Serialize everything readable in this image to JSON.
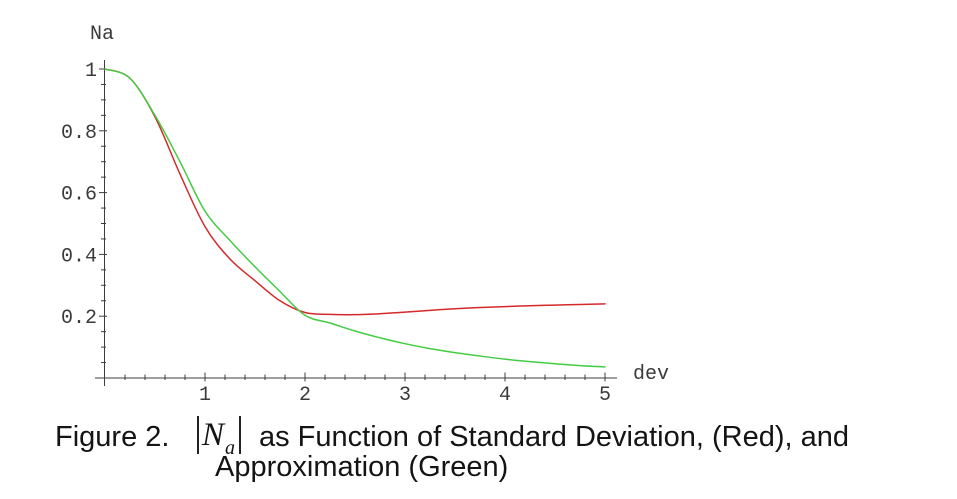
{
  "figure": {
    "caption_prefix": "Figure 2.",
    "math_open_bar": "|",
    "math_symbol": "N",
    "math_subscript": "a",
    "caption_line1_rest": "as Function of Standard Deviation, (Red), and",
    "caption_line2": "Approximation (Green)"
  },
  "chart_data": {
    "type": "line",
    "title": "",
    "xlabel": "dev",
    "ylabel": "Na",
    "xlim": [
      0,
      5
    ],
    "ylim": [
      0,
      1.03
    ],
    "x_major_ticks": [
      1,
      2,
      3,
      4,
      5
    ],
    "y_major_ticks": [
      0.2,
      0.4,
      0.6,
      0.8,
      1
    ],
    "x_minor_step": 0.2,
    "y_minor_step": 0.05,
    "grid": false,
    "legend_position": "none",
    "x": [
      0,
      0.25,
      0.5,
      0.75,
      1.0,
      1.25,
      1.5,
      1.75,
      2.0,
      2.25,
      2.5,
      2.75,
      3.0,
      3.25,
      3.5,
      3.75,
      4.0,
      4.25,
      4.5,
      4.75,
      5.0
    ],
    "series": [
      {
        "name": "|Na| as function of standard deviation (Red)",
        "color": "#d42a2a",
        "values": [
          1.0,
          0.97,
          0.845,
          0.66,
          0.49,
          0.385,
          0.315,
          0.25,
          0.212,
          0.206,
          0.205,
          0.208,
          0.213,
          0.219,
          0.224,
          0.228,
          0.231,
          0.234,
          0.236,
          0.238,
          0.24
        ]
      },
      {
        "name": "Approximation (Green)",
        "color": "#44cc44",
        "values": [
          1.0,
          0.97,
          0.85,
          0.7,
          0.54,
          0.445,
          0.36,
          0.28,
          0.203,
          0.178,
          0.152,
          0.13,
          0.111,
          0.095,
          0.082,
          0.071,
          0.061,
          0.053,
          0.046,
          0.04,
          0.036
        ]
      }
    ]
  },
  "colors": {
    "background": "#ffffff",
    "axis": "#3d3d3d",
    "tick_text": "#3b3b3b",
    "caption_text": "#141414",
    "red_curve": "#d42a2a",
    "green_curve": "#44cc44"
  }
}
